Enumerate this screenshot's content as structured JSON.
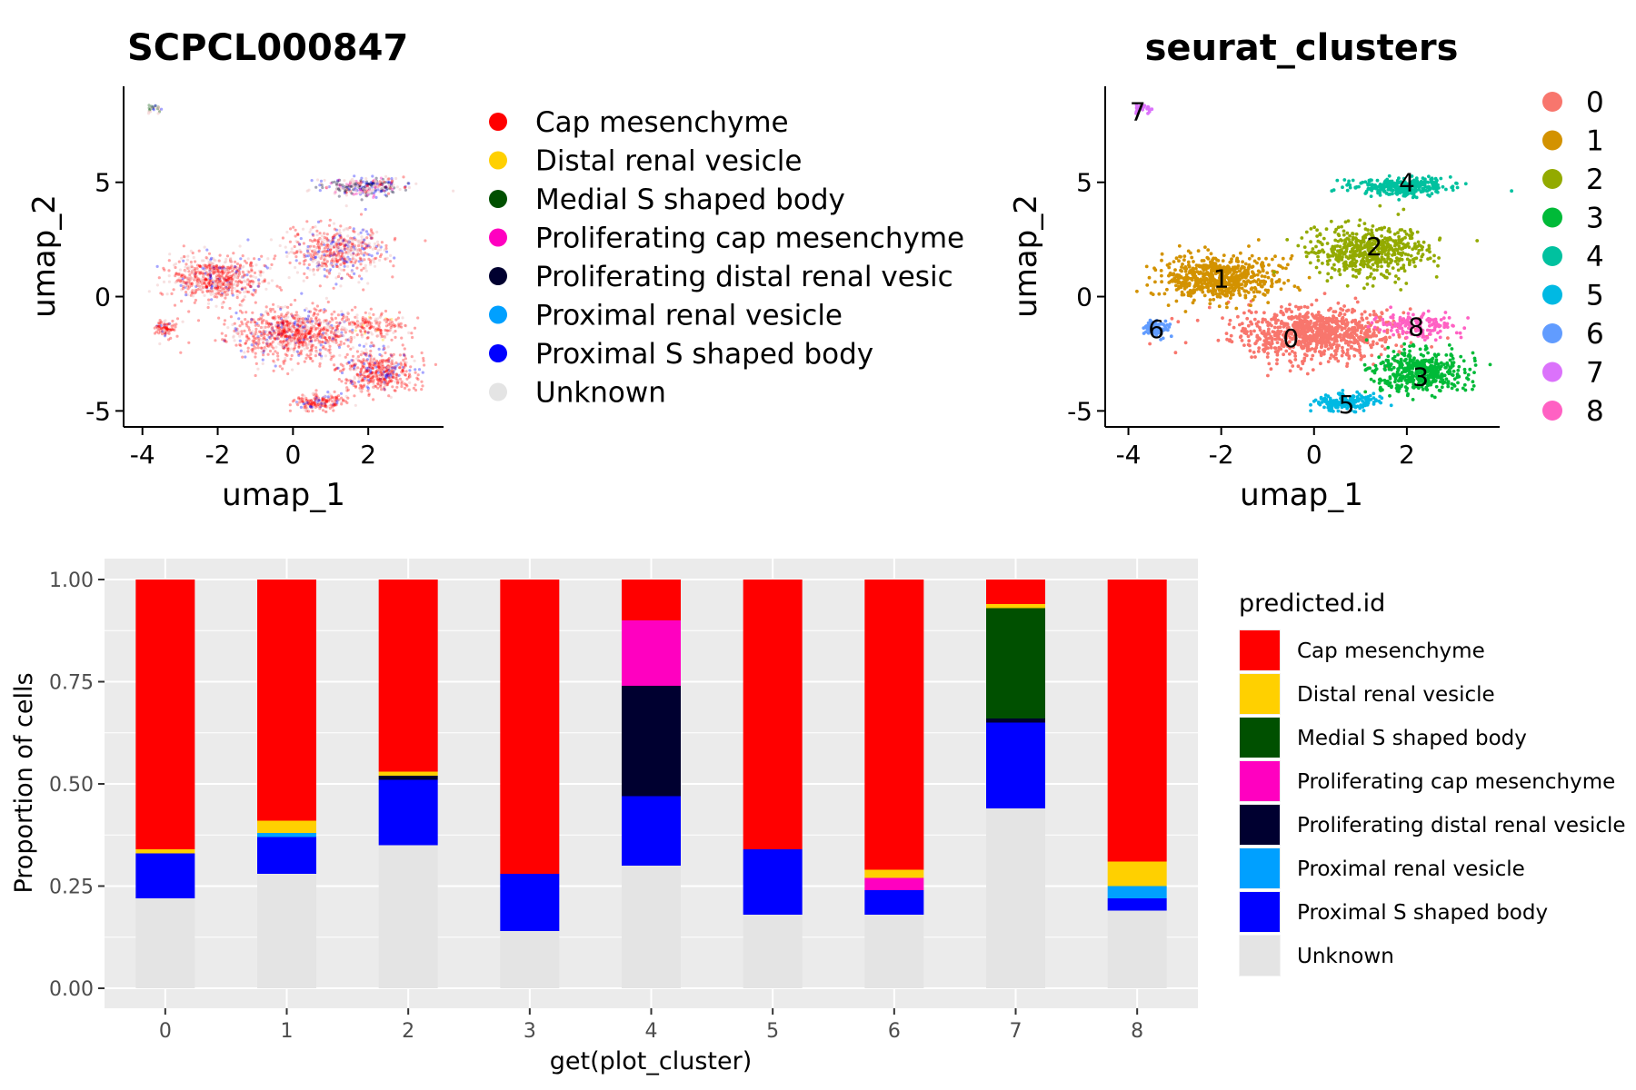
{
  "colors": {
    "Cap mesenchyme": "#FF0000",
    "Distal renal vesicle": "#FFD000",
    "Medial S shaped body": "#005000",
    "Proliferating cap mesenchyme": "#FF00C0",
    "Proliferating distal renal vesicle": "#000030",
    "Proximal renal vesicle": "#00A0FF",
    "Proximal S shaped body": "#0000FF",
    "Unknown": "#E4E4E4"
  },
  "cluster_colors": [
    "#F8766D",
    "#D39200",
    "#93AA00",
    "#00BA38",
    "#00C19F",
    "#00B9E3",
    "#619CFF",
    "#DB72FB",
    "#FF61C3"
  ],
  "chart_data": [
    {
      "type": "scatter",
      "title": "SCPCL000847",
      "xlabel": "umap_1",
      "ylabel": "umap_2",
      "xlim": [
        -4.5,
        4.0
      ],
      "ylim": [
        -5.7,
        9.2
      ],
      "xticks": [
        -4,
        -2,
        0,
        2
      ],
      "yticks": [
        -5,
        0,
        5
      ],
      "x_tick_labels": [
        "-4",
        "-2",
        "0",
        "2"
      ],
      "y_tick_labels": [
        "-5",
        "0",
        "5"
      ],
      "legend_position": "right",
      "legend": [
        "Cap mesenchyme",
        "Distal renal vesicle",
        "Medial S shaped body",
        "Proliferating cap mesenchyme",
        "Proliferating distal renal vesic",
        "Proximal renal vesicle",
        "Proximal S shaped body",
        "Unknown"
      ]
    },
    {
      "type": "scatter",
      "title": "seurat_clusters",
      "xlabel": "umap_1",
      "ylabel": "umap_2",
      "xlim": [
        -4.5,
        4.0
      ],
      "ylim": [
        -5.7,
        9.2
      ],
      "xticks": [
        -4,
        -2,
        0,
        2
      ],
      "yticks": [
        -5,
        0,
        5
      ],
      "x_tick_labels": [
        "-4",
        "-2",
        "0",
        "2"
      ],
      "y_tick_labels": [
        "-5",
        "0",
        "5"
      ],
      "legend_position": "right",
      "legend": [
        "0",
        "1",
        "2",
        "3",
        "4",
        "5",
        "6",
        "7",
        "8"
      ],
      "cluster_labels": [
        {
          "label": "0",
          "x": -0.5,
          "y": -1.8
        },
        {
          "label": "1",
          "x": -2.0,
          "y": 0.8
        },
        {
          "label": "2",
          "x": 1.3,
          "y": 2.2
        },
        {
          "label": "3",
          "x": 2.3,
          "y": -3.5
        },
        {
          "label": "4",
          "x": 2.0,
          "y": 5.0
        },
        {
          "label": "5",
          "x": 0.7,
          "y": -4.7
        },
        {
          "label": "6",
          "x": -3.4,
          "y": -1.4
        },
        {
          "label": "7",
          "x": -3.8,
          "y": 8.1
        },
        {
          "label": "8",
          "x": 2.2,
          "y": -1.3
        }
      ]
    },
    {
      "type": "bar",
      "stacked": true,
      "xlabel": "get(plot_cluster)",
      "ylabel": "Proportion of cells",
      "ylim": [
        0,
        1
      ],
      "yticks": [
        0,
        0.25,
        0.5,
        0.75,
        1
      ],
      "y_tick_labels": [
        "0.00",
        "0.25",
        "0.50",
        "0.75",
        "1.00"
      ],
      "categories": [
        "0",
        "1",
        "2",
        "3",
        "4",
        "5",
        "6",
        "7",
        "8"
      ],
      "legend_title": "predicted.id",
      "legend_position": "right",
      "series": [
        {
          "name": "Unknown",
          "values": [
            0.22,
            0.28,
            0.35,
            0.14,
            0.3,
            0.18,
            0.18,
            0.44,
            0.19
          ]
        },
        {
          "name": "Proximal S shaped body",
          "values": [
            0.11,
            0.09,
            0.16,
            0.14,
            0.17,
            0.16,
            0.06,
            0.21,
            0.03
          ]
        },
        {
          "name": "Proximal renal vesicle",
          "values": [
            0.0,
            0.01,
            0.0,
            0.0,
            0.0,
            0.0,
            0.0,
            0.0,
            0.03
          ]
        },
        {
          "name": "Proliferating distal renal vesicle",
          "values": [
            0.0,
            0.0,
            0.01,
            0.0,
            0.27,
            0.0,
            0.0,
            0.01,
            0.0
          ]
        },
        {
          "name": "Proliferating cap mesenchyme",
          "values": [
            0.0,
            0.0,
            0.0,
            0.0,
            0.16,
            0.0,
            0.03,
            0.0,
            0.0
          ]
        },
        {
          "name": "Medial S shaped body",
          "values": [
            0.0,
            0.0,
            0.0,
            0.0,
            0.0,
            0.0,
            0.0,
            0.27,
            0.0
          ]
        },
        {
          "name": "Distal renal vesicle",
          "values": [
            0.01,
            0.03,
            0.01,
            0.0,
            0.0,
            0.0,
            0.02,
            0.01,
            0.06
          ]
        },
        {
          "name": "Cap mesenchyme",
          "values": [
            0.66,
            0.59,
            0.47,
            0.72,
            0.1,
            0.66,
            0.71,
            0.06,
            0.69
          ]
        }
      ],
      "legend": [
        "Cap mesenchyme",
        "Distal renal vesicle",
        "Medial S shaped body",
        "Proliferating cap mesenchyme",
        "Proliferating distal renal vesicle",
        "Proximal renal vesicle",
        "Proximal S shaped body",
        "Unknown"
      ]
    }
  ]
}
